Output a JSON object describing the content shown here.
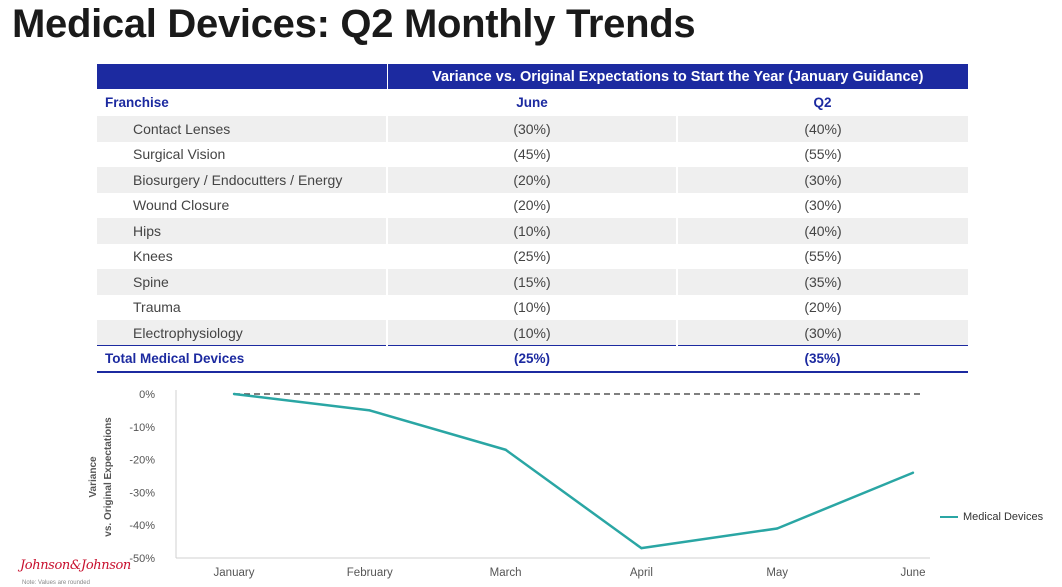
{
  "title": "Medical Devices: Q2 Monthly Trends",
  "table": {
    "band_label": "Variance vs. Original Expectations to Start the Year (January Guidance)",
    "headers": [
      "Franchise",
      "June",
      "Q2"
    ],
    "rows": [
      {
        "name": "Contact Lenses",
        "june": "(30%)",
        "q2": "(40%)"
      },
      {
        "name": "Surgical Vision",
        "june": "(45%)",
        "q2": "(55%)"
      },
      {
        "name": "Biosurgery / Endocutters / Energy",
        "june": "(20%)",
        "q2": "(30%)"
      },
      {
        "name": "Wound Closure",
        "june": "(20%)",
        "q2": "(30%)"
      },
      {
        "name": "Hips",
        "june": "(10%)",
        "q2": "(40%)"
      },
      {
        "name": "Knees",
        "june": "(25%)",
        "q2": "(55%)"
      },
      {
        "name": "Spine",
        "june": "(15%)",
        "q2": "(35%)"
      },
      {
        "name": "Trauma",
        "june": "(10%)",
        "q2": "(20%)"
      },
      {
        "name": "Electrophysiology",
        "june": "(10%)",
        "q2": "(30%)"
      }
    ],
    "total": {
      "name": "Total Medical Devices",
      "june": "(25%)",
      "q2": "(35%)"
    }
  },
  "chart_data": {
    "type": "line",
    "title": "",
    "xlabel": "",
    "ylabel": "Variance vs. Original Expectations",
    "ylabel_lines": [
      "Variance",
      "vs. Original Expectations"
    ],
    "categories": [
      "January",
      "February",
      "March",
      "April",
      "May",
      "June"
    ],
    "ylim": [
      -50,
      0
    ],
    "yticks": [
      0,
      -10,
      -20,
      -30,
      -40,
      -50
    ],
    "ytick_labels": [
      "0%",
      "-10%",
      "-20%",
      "-30%",
      "-40%",
      "-50%"
    ],
    "series": [
      {
        "name": "Medical Devices",
        "values": [
          0,
          -5,
          -17,
          -47,
          -41,
          -24
        ],
        "color": "#2aa6a4"
      }
    ],
    "reference_line": {
      "value": 0,
      "style": "dashed",
      "color": "#555555"
    },
    "grid": false,
    "legend": "right"
  },
  "logo_text": "Johnson&Johnson",
  "footnote": "Note: Values are rounded",
  "colors": {
    "accent": "#1c2aa0",
    "series": "#2aa6a4",
    "logo": "#c8102e"
  }
}
